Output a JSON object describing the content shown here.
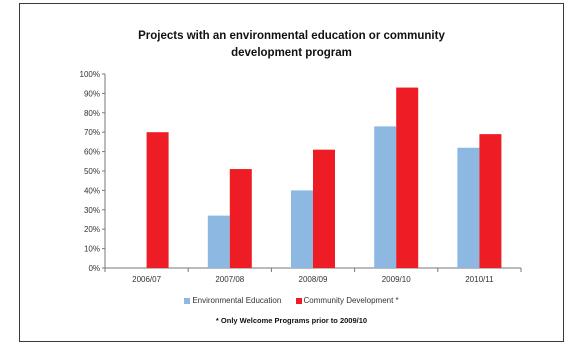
{
  "chart_data": {
    "type": "bar",
    "title_line1": "Projects with an environmental education or community",
    "title_line2": "development program",
    "categories": [
      "2006/07",
      "2007/08",
      "2008/09",
      "2009/10",
      "2010/11"
    ],
    "series": [
      {
        "name": "Environmental Education",
        "values": [
          0,
          27,
          40,
          73,
          62
        ],
        "color": "#8db8e2"
      },
      {
        "name": "Community Development *",
        "values": [
          70,
          51,
          61,
          93,
          69
        ],
        "color": "#ee1c24"
      }
    ],
    "ylim": [
      0,
      100
    ],
    "yticks": [
      "0%",
      "10%",
      "20%",
      "30%",
      "40%",
      "50%",
      "60%",
      "70%",
      "80%",
      "90%",
      "100%"
    ],
    "footnote": "* Only Welcome Programs prior to 2009/10",
    "grid": false
  }
}
